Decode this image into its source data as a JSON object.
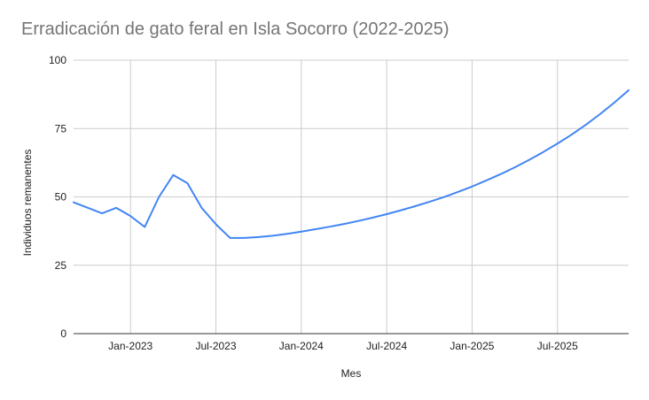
{
  "chart_data": {
    "type": "line",
    "title": "Erradicación de gato feral en Isla Socorro (2022-2025)",
    "xlabel": "Mes",
    "ylabel": "Individuos remanentes",
    "ylim": [
      0,
      100
    ],
    "yticks": [
      0,
      25,
      50,
      75,
      100
    ],
    "xticks": [
      "Jan-2023",
      "Jul-2023",
      "Jan-2024",
      "Jul-2024",
      "Jan-2025",
      "Jul-2025"
    ],
    "xlim": [
      "2022-09",
      "2025-12"
    ],
    "grid": true,
    "legend": "none",
    "colors": {
      "line": "#4285f4",
      "grid": "#cccccc",
      "axis": "#333333"
    },
    "series": [
      {
        "x": [
          "2022-09",
          "2022-10",
          "2022-11",
          "2022-12",
          "2023-01",
          "2023-02",
          "2023-03",
          "2023-04",
          "2023-05",
          "2023-06",
          "2023-07",
          "2023-08",
          "2023-09",
          "2023-10",
          "2023-11",
          "2023-12",
          "2024-01",
          "2024-02",
          "2024-03",
          "2024-04",
          "2024-05",
          "2024-06",
          "2024-07",
          "2024-08",
          "2024-09",
          "2024-10",
          "2024-11",
          "2024-12",
          "2025-01",
          "2025-02",
          "2025-03",
          "2025-04",
          "2025-05",
          "2025-06",
          "2025-07",
          "2025-08",
          "2025-09",
          "2025-10",
          "2025-11",
          "2025-12"
        ],
        "values": [
          48,
          46,
          44,
          46,
          43,
          39,
          50,
          58,
          55,
          46,
          40,
          35,
          35,
          35.3,
          35.8,
          36.5,
          37.3,
          38.2,
          39.1,
          40.1,
          41.2,
          42.4,
          43.7,
          45.1,
          46.6,
          48.2,
          49.9,
          51.8,
          53.8,
          56.0,
          58.3,
          60.8,
          63.5,
          66.4,
          69.5,
          72.8,
          76.4,
          80.3,
          84.5,
          89.0
        ]
      }
    ]
  }
}
